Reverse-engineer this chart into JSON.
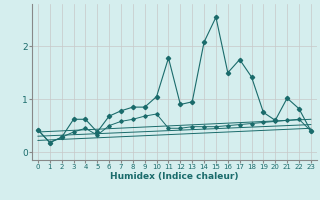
{
  "xlabel": "Humidex (Indice chaleur)",
  "bg_color": "#d5eeee",
  "grid_color": "#c8c8c8",
  "line_color": "#1a6b6b",
  "xlim": [
    -0.5,
    23.5
  ],
  "ylim": [
    -0.15,
    2.8
  ],
  "xticks": [
    0,
    1,
    2,
    3,
    4,
    5,
    6,
    7,
    8,
    9,
    10,
    11,
    12,
    13,
    14,
    15,
    16,
    17,
    18,
    19,
    20,
    21,
    22,
    23
  ],
  "yticks": [
    0,
    1,
    2
  ],
  "series1_x": [
    0,
    1,
    2,
    3,
    4,
    5,
    6,
    7,
    8,
    9,
    10,
    11,
    12,
    13,
    14,
    15,
    16,
    17,
    18,
    19,
    20,
    21,
    22,
    23
  ],
  "series1_y": [
    0.42,
    0.18,
    0.28,
    0.62,
    0.62,
    0.38,
    0.68,
    0.78,
    0.85,
    0.85,
    1.05,
    1.78,
    0.9,
    0.95,
    2.08,
    2.55,
    1.5,
    1.75,
    1.42,
    0.75,
    0.6,
    1.02,
    0.82,
    0.4
  ],
  "series2_x": [
    0,
    1,
    2,
    3,
    4,
    5,
    6,
    7,
    8,
    9,
    10,
    11,
    12,
    13,
    14,
    15,
    16,
    17,
    18,
    19,
    20,
    21,
    22,
    23
  ],
  "series2_y": [
    0.42,
    0.18,
    0.28,
    0.38,
    0.45,
    0.32,
    0.5,
    0.58,
    0.62,
    0.68,
    0.72,
    0.45,
    0.45,
    0.48,
    0.48,
    0.48,
    0.5,
    0.52,
    0.54,
    0.56,
    0.58,
    0.6,
    0.62,
    0.4
  ],
  "trend1_x": [
    0,
    23
  ],
  "trend1_y": [
    0.38,
    0.62
  ],
  "trend2_x": [
    0,
    23
  ],
  "trend2_y": [
    0.3,
    0.52
  ],
  "trend3_x": [
    0,
    23
  ],
  "trend3_y": [
    0.22,
    0.45
  ]
}
